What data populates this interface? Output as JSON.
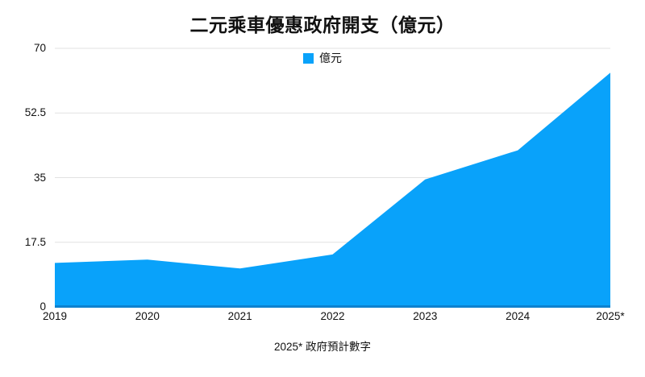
{
  "chart": {
    "title": "二元乘車優惠政府開支（億元）",
    "legend_label": "億元",
    "footnote": "2025* 政府預計數字"
  },
  "colors": {
    "area": "#09a2fa",
    "axis_line": "#0d82cf",
    "gridline": "#e2e2e2",
    "text": "#111111"
  },
  "chart_data": {
    "type": "area",
    "title": "二元乘車優惠政府開支（億元）",
    "legend": [
      "億元"
    ],
    "legend_position": "top-center",
    "categories": [
      "2019",
      "2020",
      "2021",
      "2022",
      "2023",
      "2024",
      "2025*"
    ],
    "series": [
      {
        "name": "億元",
        "values": [
          11.9,
          12.8,
          10.4,
          14.2,
          34.5,
          42.4,
          63.4
        ]
      }
    ],
    "xlabel": "",
    "ylabel": "",
    "ylim": [
      0,
      70
    ],
    "yticks": [
      0,
      17.5,
      35,
      52.5,
      70
    ],
    "grid": true,
    "footnote": "2025* 政府預計數字"
  }
}
